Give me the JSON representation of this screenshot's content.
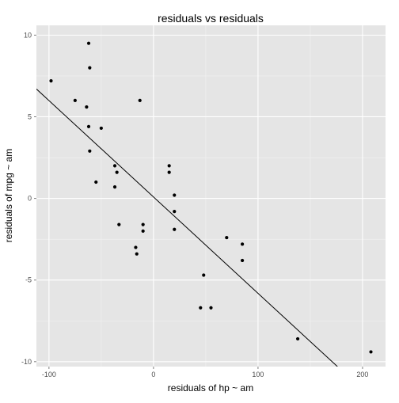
{
  "chart_data": {
    "type": "scatter",
    "title": "residuals vs residuals",
    "xlabel": "residuals of hp ~ am",
    "ylabel": "residuals of mpg ~ am",
    "xlim": [
      -112,
      222
    ],
    "ylim": [
      -10.3,
      10.6
    ],
    "x_ticks": [
      -100,
      0,
      100,
      200
    ],
    "x_tick_labels": [
      "-100",
      "0",
      "100",
      "200"
    ],
    "y_ticks": [
      -10,
      -5,
      0,
      5,
      10
    ],
    "y_tick_labels": [
      "-10",
      "-5",
      "0",
      "5",
      "10"
    ],
    "grid": true,
    "legend": "none",
    "colors": {
      "panel_background": "#E5E5E5",
      "grid_major": "#FFFFFF",
      "grid_minor": "#F2F2F2",
      "points": "#000000",
      "fit_line": "#000000"
    },
    "points": [
      {
        "x": -98,
        "y": 7.2
      },
      {
        "x": -75,
        "y": 6.0
      },
      {
        "x": -64,
        "y": 5.6
      },
      {
        "x": -62,
        "y": 9.5
      },
      {
        "x": -61,
        "y": 8.0
      },
      {
        "x": -62,
        "y": 4.4
      },
      {
        "x": -61,
        "y": 2.9
      },
      {
        "x": -50,
        "y": 4.3
      },
      {
        "x": -55,
        "y": 1.0
      },
      {
        "x": -37,
        "y": 2.0
      },
      {
        "x": -35,
        "y": 1.6
      },
      {
        "x": -37,
        "y": 0.7
      },
      {
        "x": -33,
        "y": -1.6
      },
      {
        "x": -13,
        "y": 6.0
      },
      {
        "x": -10,
        "y": -1.6
      },
      {
        "x": -10,
        "y": -2.0
      },
      {
        "x": -17,
        "y": -3.0
      },
      {
        "x": -16,
        "y": -3.4
      },
      {
        "x": 15,
        "y": 2.0
      },
      {
        "x": 15,
        "y": 1.6
      },
      {
        "x": 20,
        "y": 0.2
      },
      {
        "x": 20,
        "y": -0.8
      },
      {
        "x": 20,
        "y": -1.9
      },
      {
        "x": 70,
        "y": -2.4
      },
      {
        "x": 85,
        "y": -2.8
      },
      {
        "x": 85,
        "y": -3.8
      },
      {
        "x": 48,
        "y": -4.7
      },
      {
        "x": 45,
        "y": -6.7
      },
      {
        "x": 55,
        "y": -6.7
      },
      {
        "x": 138,
        "y": -8.6
      },
      {
        "x": 208,
        "y": -9.4
      }
    ],
    "fit_line": {
      "x": [
        -112,
        176
      ],
      "y": [
        6.7,
        -10.3
      ]
    }
  }
}
